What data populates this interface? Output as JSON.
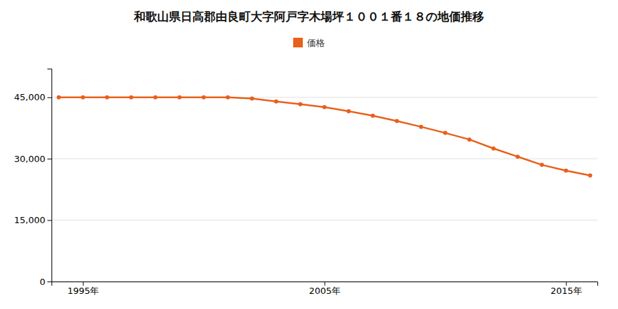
{
  "chart_data": {
    "type": "line",
    "title": "和歌山県日高郡由良町大字阿戸字木場坪１００１番１８の地価推移",
    "x": [
      1994,
      1995,
      1996,
      1997,
      1998,
      1999,
      2000,
      2001,
      2002,
      2003,
      2004,
      2005,
      2006,
      2007,
      2008,
      2009,
      2010,
      2011,
      2012,
      2013,
      2014,
      2015,
      2016
    ],
    "series": [
      {
        "name": "価格",
        "color": "#e8601a",
        "marker": "circle",
        "values": [
          45000,
          45000,
          45000,
          45000,
          45000,
          45000,
          45000,
          45000,
          44700,
          44000,
          43300,
          42600,
          41600,
          40500,
          39200,
          37800,
          36300,
          34700,
          32500,
          30500,
          28500,
          27100,
          25900
        ]
      }
    ],
    "xlim": [
      1993.7,
      2016.3
    ],
    "xticks": [
      {
        "value": 1995,
        "label": "1995年"
      },
      {
        "value": 2005,
        "label": "2005年"
      },
      {
        "value": 2015,
        "label": "2015年"
      }
    ],
    "ylim": [
      0,
      52000
    ],
    "yticks": [
      0,
      {
        "value": 15000,
        "label": "15,000"
      },
      {
        "value": 30000,
        "label": "30,000"
      },
      {
        "value": 45000,
        "label": "45,000"
      }
    ],
    "grid": true,
    "legend": "top"
  }
}
